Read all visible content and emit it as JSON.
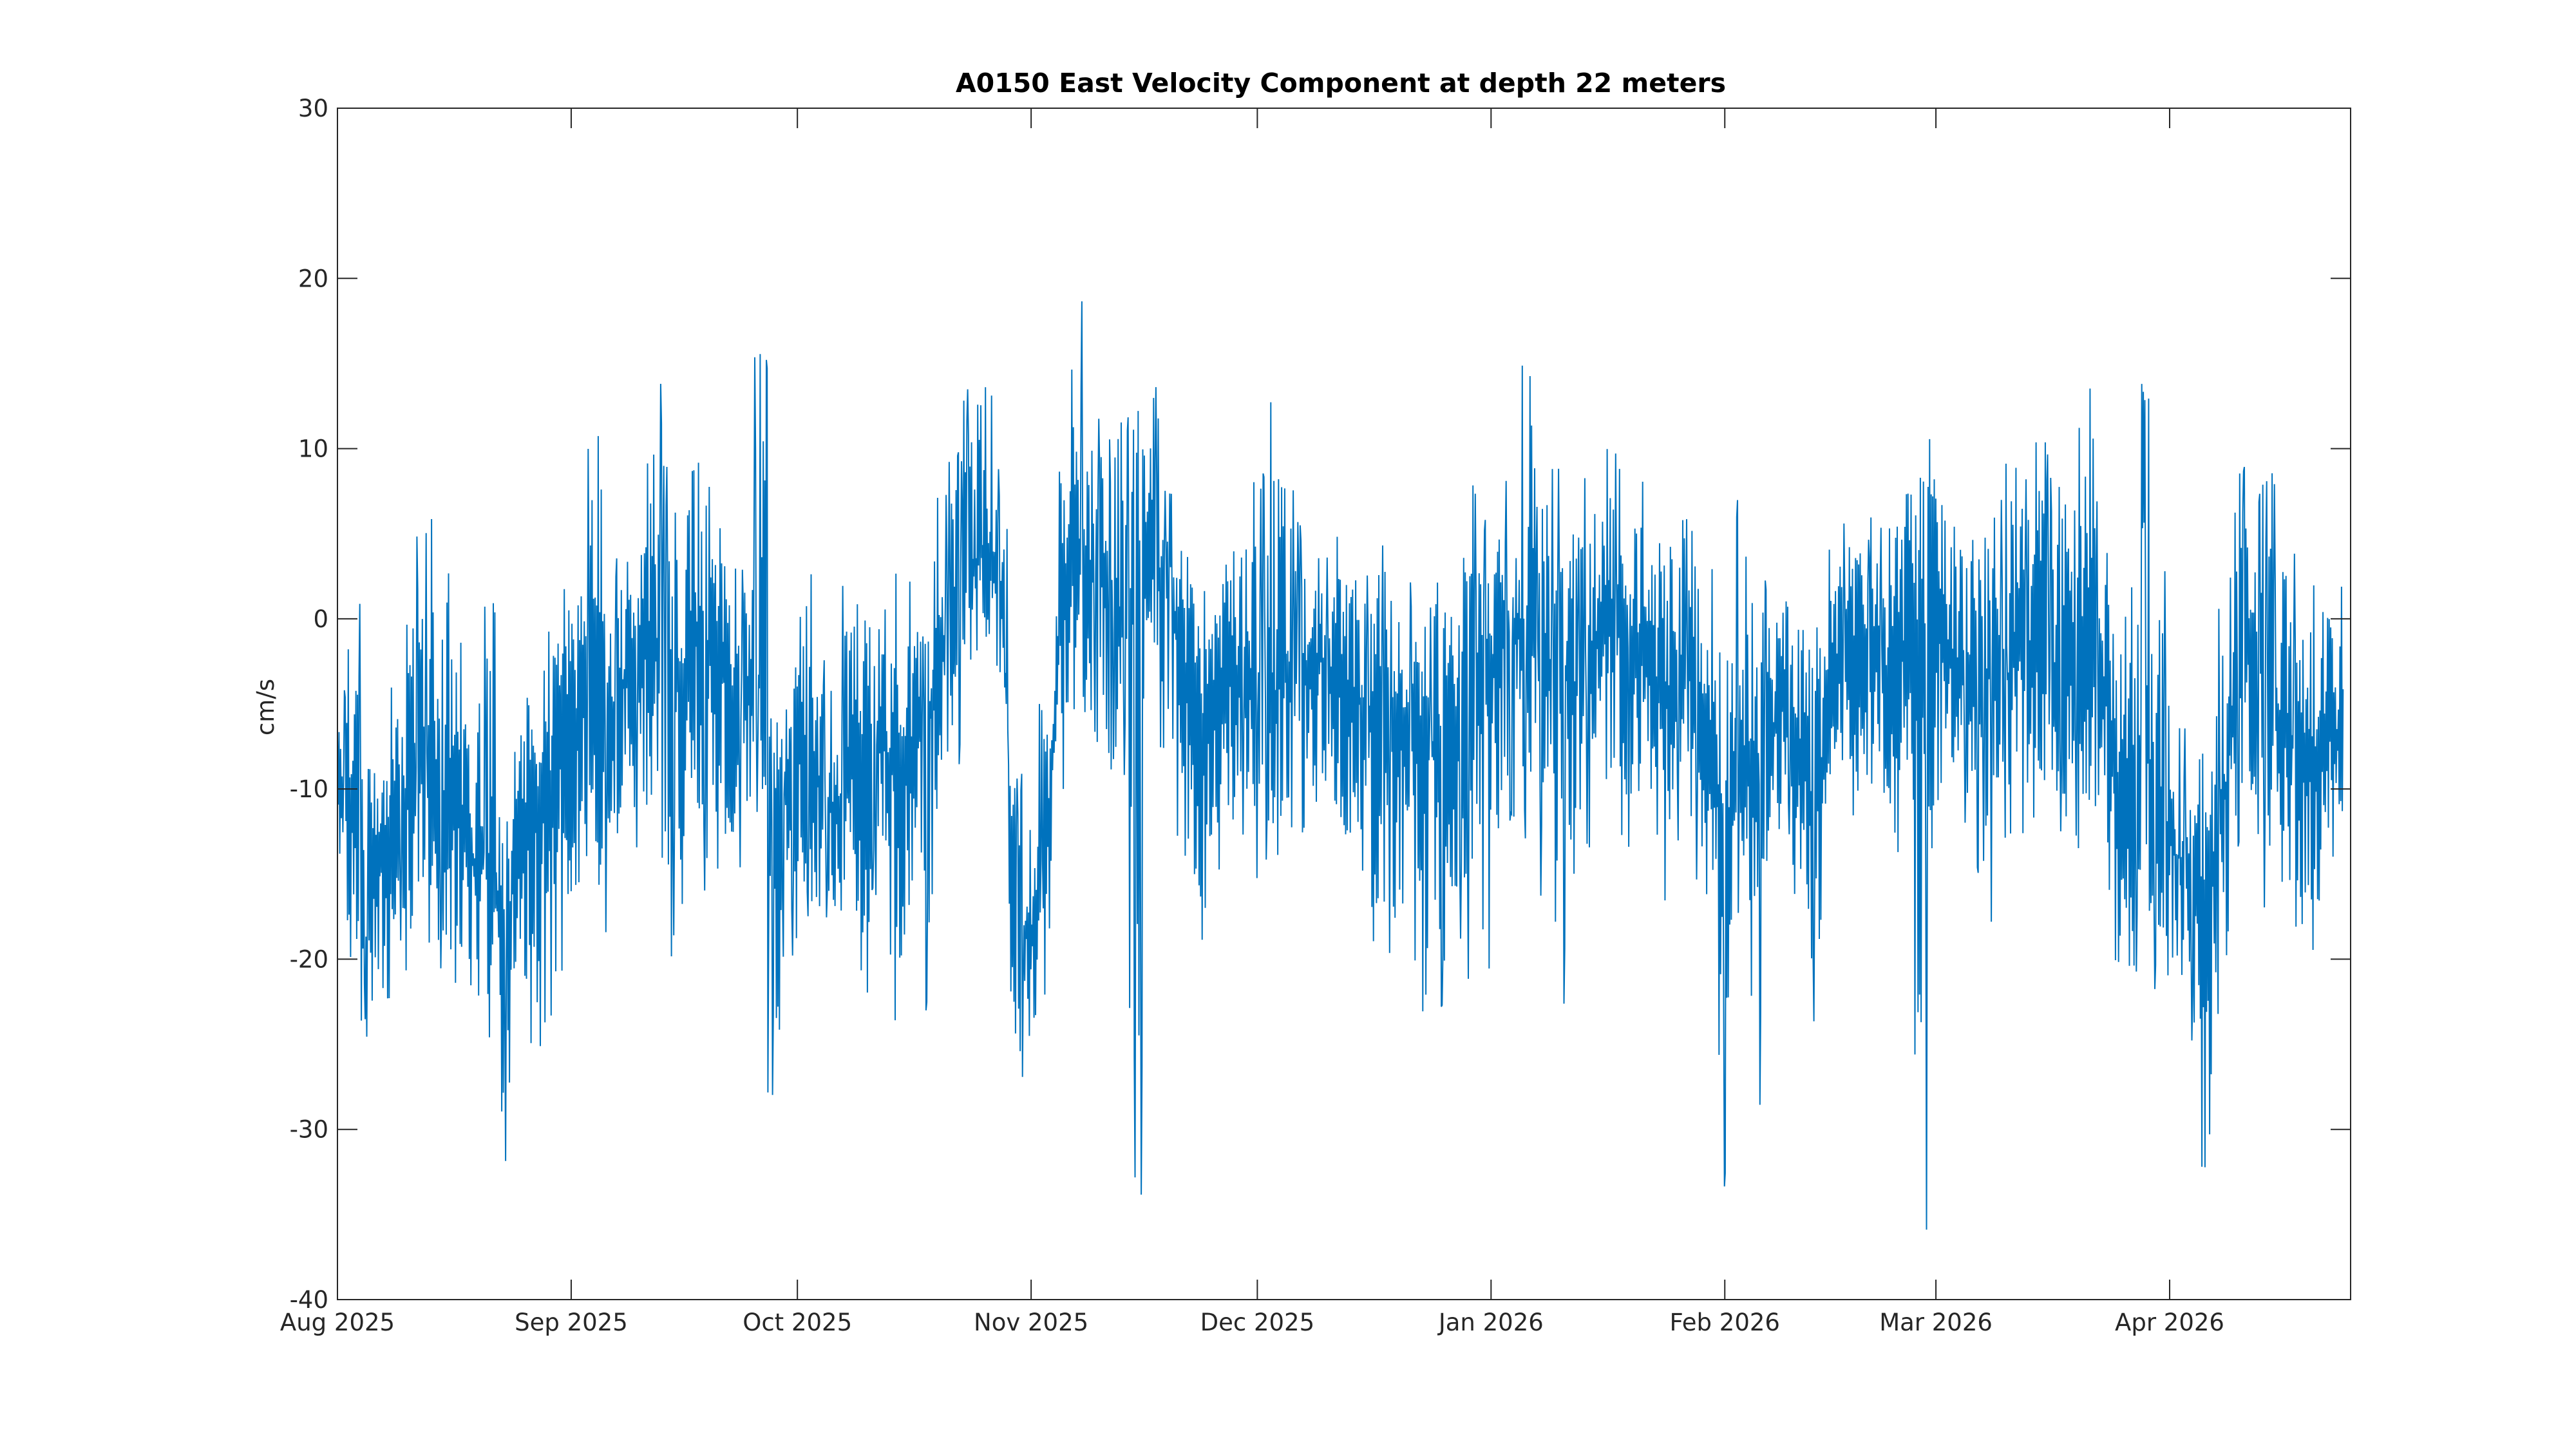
{
  "chart_data": {
    "type": "line",
    "title": "A0150 East Velocity Component at depth 22 meters",
    "xlabel": "",
    "ylabel": "cm/s",
    "x_axis_type": "date",
    "xlim": [
      "2025-08-01",
      "2026-04-25"
    ],
    "ylim": [
      -40,
      30
    ],
    "xticks": [
      {
        "date": "2025-08-01",
        "label": "Aug 2025"
      },
      {
        "date": "2025-09-01",
        "label": "Sep 2025"
      },
      {
        "date": "2025-10-01",
        "label": "Oct 2025"
      },
      {
        "date": "2025-11-01",
        "label": "Nov 2025"
      },
      {
        "date": "2025-12-01",
        "label": "Dec 2025"
      },
      {
        "date": "2026-01-01",
        "label": "Jan 2026"
      },
      {
        "date": "2026-02-01",
        "label": "Feb 2026"
      },
      {
        "date": "2026-03-01",
        "label": "Mar 2026"
      },
      {
        "date": "2026-04-01",
        "label": "Apr 2026"
      }
    ],
    "yticks": [
      {
        "value": 30,
        "label": "30"
      },
      {
        "value": 20,
        "label": "20"
      },
      {
        "value": 10,
        "label": "10"
      },
      {
        "value": 0,
        "label": "0"
      },
      {
        "value": -10,
        "label": "-10"
      },
      {
        "value": -20,
        "label": "-20"
      },
      {
        "value": -30,
        "label": "-30"
      },
      {
        "value": -40,
        "label": "-40"
      }
    ],
    "grid": false,
    "legend": "none",
    "series": [
      {
        "color": "#0072bd",
        "note_on_resolution": "oscillating hourly signal summarised as daily envelope: each point gives the date, typical (mean) value, and daily min/max in cm/s",
        "points": [
          [
            "2025-08-01",
            -9,
            -15,
            -4
          ],
          [
            "2025-08-03",
            -12,
            -21,
            1
          ],
          [
            "2025-08-05",
            -15,
            -25,
            -7
          ],
          [
            "2025-08-07",
            -13,
            -25,
            -8
          ],
          [
            "2025-08-09",
            -11,
            -20,
            -3
          ],
          [
            "2025-08-11",
            -9,
            -22,
            5
          ],
          [
            "2025-08-13",
            -10,
            -23,
            6
          ],
          [
            "2025-08-15",
            -10,
            -22,
            4
          ],
          [
            "2025-08-17",
            -12,
            -24,
            2
          ],
          [
            "2025-08-19",
            -14,
            -23,
            -4
          ],
          [
            "2025-08-21",
            -15,
            -25,
            1
          ],
          [
            "2025-08-23",
            -18,
            -33,
            -8
          ],
          [
            "2025-08-25",
            -15,
            -25,
            -4
          ],
          [
            "2025-08-27",
            -12,
            -26,
            -2
          ],
          [
            "2025-08-29",
            -10,
            -28,
            0
          ],
          [
            "2025-08-31",
            -8,
            -21,
            6
          ],
          [
            "2025-09-02",
            -6,
            -18,
            4
          ],
          [
            "2025-09-04",
            -4,
            -17,
            11
          ],
          [
            "2025-09-06",
            -6,
            -19,
            3
          ],
          [
            "2025-09-08",
            -4,
            -16,
            6
          ],
          [
            "2025-09-10",
            -2,
            -14,
            9
          ],
          [
            "2025-09-12",
            -1,
            -15,
            15
          ],
          [
            "2025-09-14",
            -2,
            -20,
            10
          ],
          [
            "2025-09-16",
            -3,
            -17,
            9
          ],
          [
            "2025-09-18",
            -1,
            -16,
            12
          ],
          [
            "2025-09-20",
            -2,
            -15,
            8
          ],
          [
            "2025-09-22",
            -4,
            -15,
            6
          ],
          [
            "2025-09-24",
            -5,
            -16,
            4
          ],
          [
            "2025-09-26",
            -4,
            -12,
            16
          ],
          [
            "2025-09-28",
            -10,
            -28,
            -5
          ],
          [
            "2025-09-30",
            -9,
            -20,
            0
          ],
          [
            "2025-10-02",
            -8,
            -18,
            3
          ],
          [
            "2025-10-04",
            -10,
            -19,
            -2
          ],
          [
            "2025-10-06",
            -12,
            -23,
            -2
          ],
          [
            "2025-10-08",
            -9,
            -20,
            2
          ],
          [
            "2025-10-10",
            -8,
            -22,
            1
          ],
          [
            "2025-10-12",
            -6,
            -17,
            3
          ],
          [
            "2025-10-14",
            -10,
            -28,
            3
          ],
          [
            "2025-10-16",
            -8,
            -21,
            3
          ],
          [
            "2025-10-18",
            -6,
            -24,
            0
          ],
          [
            "2025-10-20",
            -2,
            -14,
            8
          ],
          [
            "2025-10-22",
            1,
            -10,
            10
          ],
          [
            "2025-10-24",
            3,
            -4,
            14
          ],
          [
            "2025-10-26",
            4,
            -3,
            17
          ],
          [
            "2025-10-28",
            2,
            -5,
            9
          ],
          [
            "2025-10-30",
            -18,
            -28,
            -9
          ],
          [
            "2025-11-01",
            -19,
            -26,
            -12
          ],
          [
            "2025-11-03",
            -14,
            -24,
            -5
          ],
          [
            "2025-11-05",
            2,
            -10,
            11
          ],
          [
            "2025-11-07",
            4,
            -6,
            19
          ],
          [
            "2025-11-09",
            3,
            -8,
            13
          ],
          [
            "2025-11-11",
            2,
            -9,
            11
          ],
          [
            "2025-11-13",
            0,
            -10,
            12
          ],
          [
            "2025-11-15",
            1,
            -34,
            16
          ],
          [
            "2025-11-17",
            4,
            -5,
            14
          ],
          [
            "2025-11-19",
            2,
            -12,
            8
          ],
          [
            "2025-11-21",
            -2,
            -17,
            6
          ],
          [
            "2025-11-23",
            -6,
            -19,
            4
          ],
          [
            "2025-11-25",
            -7,
            -20,
            3
          ],
          [
            "2025-11-27",
            -4,
            -14,
            8
          ],
          [
            "2025-11-29",
            -3,
            -13,
            6
          ],
          [
            "2025-12-01",
            -4,
            -16,
            9
          ],
          [
            "2025-12-03",
            -5,
            -15,
            13
          ],
          [
            "2025-12-05",
            -3,
            -13,
            8
          ],
          [
            "2025-12-07",
            -4,
            -15,
            6
          ],
          [
            "2025-12-09",
            -2,
            -12,
            7
          ],
          [
            "2025-12-11",
            -3,
            -14,
            5
          ],
          [
            "2025-12-13",
            -4,
            -15,
            4
          ],
          [
            "2025-12-15",
            -5,
            -18,
            4
          ],
          [
            "2025-12-17",
            -6,
            -20,
            5
          ],
          [
            "2025-12-19",
            -5,
            -21,
            3
          ],
          [
            "2025-12-21",
            -6,
            -25,
            3
          ],
          [
            "2025-12-23",
            -8,
            -27,
            2
          ],
          [
            "2025-12-25",
            -7,
            -24,
            5
          ],
          [
            "2025-12-27",
            -6,
            -20,
            6
          ],
          [
            "2025-12-29",
            -5,
            -22,
            8
          ],
          [
            "2025-12-31",
            -4,
            -22,
            6
          ],
          [
            "2026-01-02",
            -2,
            -16,
            9
          ],
          [
            "2026-01-04",
            0,
            -12,
            5
          ],
          [
            "2026-01-06",
            -1,
            -14,
            22
          ],
          [
            "2026-01-08",
            -2,
            -17,
            7
          ],
          [
            "2026-01-10",
            -3,
            -24,
            9
          ],
          [
            "2026-01-12",
            -4,
            -16,
            6
          ],
          [
            "2026-01-14",
            -2,
            -14,
            9
          ],
          [
            "2026-01-16",
            0,
            -12,
            11
          ],
          [
            "2026-01-18",
            -1,
            -13,
            10
          ],
          [
            "2026-01-20",
            -2,
            -14,
            10
          ],
          [
            "2026-01-22",
            -3,
            -12,
            9
          ],
          [
            "2026-01-24",
            -5,
            -21,
            7
          ],
          [
            "2026-01-26",
            -4,
            -14,
            7
          ],
          [
            "2026-01-28",
            -3,
            -16,
            6
          ],
          [
            "2026-01-30",
            -6,
            -19,
            6
          ],
          [
            "2026-02-01",
            -15,
            -34,
            3
          ],
          [
            "2026-02-03",
            -8,
            -18,
            7
          ],
          [
            "2026-02-05",
            -9,
            -29,
            4
          ],
          [
            "2026-02-07",
            -7,
            -17,
            3
          ],
          [
            "2026-02-09",
            -5,
            -14,
            4
          ],
          [
            "2026-02-11",
            -8,
            -21,
            2
          ],
          [
            "2026-02-13",
            -12,
            -24,
            3
          ],
          [
            "2026-02-15",
            -6,
            -12,
            5
          ],
          [
            "2026-02-17",
            -2,
            -10,
            7
          ],
          [
            "2026-02-19",
            -1,
            -13,
            7
          ],
          [
            "2026-02-21",
            -2,
            -11,
            6
          ],
          [
            "2026-02-23",
            -4,
            -15,
            6
          ],
          [
            "2026-02-25",
            -2,
            -10,
            10
          ],
          [
            "2026-02-27",
            -1,
            -36,
            13
          ],
          [
            "2026-03-01",
            -1,
            -14,
            11
          ],
          [
            "2026-03-03",
            -2,
            -10,
            10
          ],
          [
            "2026-03-05",
            -4,
            -13,
            8
          ],
          [
            "2026-03-07",
            -3,
            -15,
            7
          ],
          [
            "2026-03-09",
            -4,
            -18,
            7
          ],
          [
            "2026-03-11",
            -3,
            -14,
            10
          ],
          [
            "2026-03-13",
            -2,
            -13,
            9
          ],
          [
            "2026-03-15",
            -3,
            -12,
            11
          ],
          [
            "2026-03-17",
            -4,
            -13,
            9
          ],
          [
            "2026-03-19",
            -3,
            -14,
            10
          ],
          [
            "2026-03-21",
            -2,
            -13,
            15
          ],
          [
            "2026-03-23",
            -3,
            -15,
            8
          ],
          [
            "2026-03-25",
            -10,
            -23,
            4
          ],
          [
            "2026-03-27",
            -9,
            -21,
            6
          ],
          [
            "2026-03-29",
            -8,
            -20,
            14
          ],
          [
            "2026-03-31",
            -12,
            -23,
            3
          ],
          [
            "2026-04-02",
            -14,
            -22,
            -6
          ],
          [
            "2026-04-04",
            -14,
            -25,
            -5
          ],
          [
            "2026-04-06",
            -16,
            -38,
            -6
          ],
          [
            "2026-04-08",
            -12,
            -24,
            1
          ],
          [
            "2026-04-10",
            -3,
            -14,
            10
          ],
          [
            "2026-04-12",
            -2,
            -14,
            8
          ],
          [
            "2026-04-14",
            -4,
            -17,
            9
          ],
          [
            "2026-04-16",
            -6,
            -18,
            6
          ],
          [
            "2026-04-18",
            -8,
            -21,
            4
          ],
          [
            "2026-04-20",
            -9,
            -20,
            5
          ],
          [
            "2026-04-22",
            -7,
            -17,
            3
          ],
          [
            "2026-04-24",
            -8,
            -16,
            9
          ]
        ]
      }
    ]
  }
}
